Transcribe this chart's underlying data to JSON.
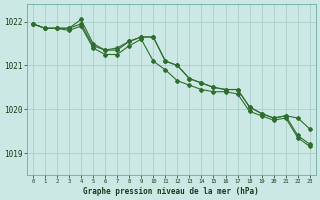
{
  "title": "Graphe pression niveau de la mer (hPa)",
  "background_color": "#cce8e4",
  "grid_color": "#aacec8",
  "line_color": "#2d6e2d",
  "xlim": [
    -0.5,
    23.5
  ],
  "ylim": [
    1018.5,
    1022.4
  ],
  "yticks": [
    1019,
    1020,
    1021,
    1022
  ],
  "xticks": [
    0,
    1,
    2,
    3,
    4,
    5,
    6,
    7,
    8,
    9,
    10,
    11,
    12,
    13,
    14,
    15,
    16,
    17,
    18,
    19,
    20,
    21,
    22,
    23
  ],
  "series1": [
    1021.95,
    1021.85,
    1021.85,
    1021.85,
    1021.95,
    1021.45,
    1021.35,
    1021.35,
    1021.55,
    1021.65,
    1021.65,
    1021.1,
    1021.0,
    1020.7,
    1020.6,
    1020.5,
    1020.45,
    1020.45,
    1020.05,
    1019.9,
    1019.8,
    1019.85,
    1019.4,
    1019.2
  ],
  "series2": [
    1021.95,
    1021.85,
    1021.85,
    1021.85,
    1022.05,
    1021.5,
    1021.35,
    1021.4,
    1021.55,
    1021.65,
    1021.65,
    1021.1,
    1021.0,
    1020.7,
    1020.6,
    1020.5,
    1020.45,
    1020.45,
    1020.05,
    1019.9,
    1019.8,
    1019.85,
    1019.8,
    1019.55
  ],
  "series3": [
    1021.95,
    1021.85,
    1021.85,
    1021.8,
    1021.9,
    1021.4,
    1021.25,
    1021.25,
    1021.45,
    1021.6,
    1021.1,
    1020.9,
    1020.65,
    1020.55,
    1020.45,
    1020.4,
    1020.4,
    1020.35,
    1019.95,
    1019.85,
    1019.75,
    1019.8,
    1019.35,
    1019.15
  ],
  "figsize": [
    3.2,
    2.0
  ],
  "dpi": 100
}
